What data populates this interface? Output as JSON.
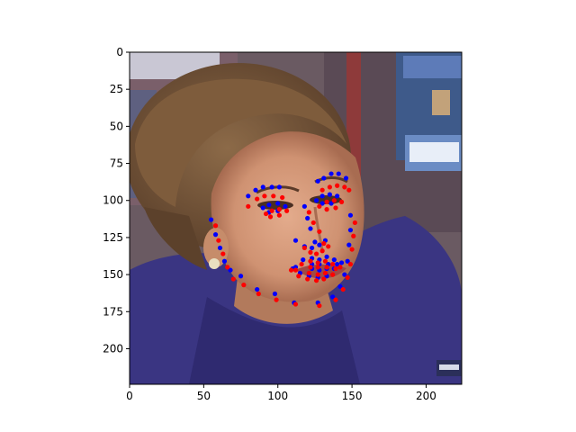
{
  "chart_data": {
    "type": "scatter",
    "title": "",
    "xlabel": "",
    "ylabel": "",
    "xlim": [
      0,
      224
    ],
    "ylim": [
      224,
      0
    ],
    "y_inverted": true,
    "grid": false,
    "background": "photograph of a woman's face (purple top, short brown hair), image shown with imshow",
    "x_ticks": [
      0,
      50,
      100,
      150,
      200
    ],
    "y_ticks": [
      0,
      25,
      50,
      75,
      100,
      125,
      150,
      175,
      200
    ],
    "series": [
      {
        "color": "#0000ff",
        "points": [
          [
            55,
            113
          ],
          [
            58,
            123
          ],
          [
            61,
            132
          ],
          [
            64,
            141
          ],
          [
            68,
            147
          ],
          [
            75,
            151
          ],
          [
            86,
            160
          ],
          [
            98,
            163
          ],
          [
            111,
            169
          ],
          [
            127,
            169
          ],
          [
            137,
            165
          ],
          [
            142,
            158
          ],
          [
            145,
            150
          ],
          [
            147,
            141
          ],
          [
            148,
            130
          ],
          [
            149,
            120
          ],
          [
            149,
            110
          ],
          [
            80,
            97
          ],
          [
            85,
            93
          ],
          [
            90,
            91
          ],
          [
            96,
            91
          ],
          [
            101,
            91
          ],
          [
            127,
            87
          ],
          [
            131,
            85
          ],
          [
            136,
            82
          ],
          [
            141,
            82
          ],
          [
            146,
            85
          ],
          [
            118,
            104
          ],
          [
            120,
            112
          ],
          [
            122,
            119
          ],
          [
            125,
            128
          ],
          [
            112,
            127
          ],
          [
            118,
            131
          ],
          [
            123,
            132
          ],
          [
            128,
            130
          ],
          [
            132,
            127
          ],
          [
            90,
            105
          ],
          [
            94,
            103
          ],
          [
            100,
            102
          ],
          [
            105,
            104
          ],
          [
            100,
            107
          ],
          [
            94,
            108
          ],
          [
            126,
            100
          ],
          [
            130,
            97
          ],
          [
            135,
            96
          ],
          [
            140,
            97
          ],
          [
            136,
            102
          ],
          [
            130,
            102
          ],
          [
            110,
            146
          ],
          [
            117,
            140
          ],
          [
            123,
            139
          ],
          [
            128,
            140
          ],
          [
            133,
            138
          ],
          [
            138,
            140
          ],
          [
            143,
            142
          ],
          [
            138,
            146
          ],
          [
            133,
            151
          ],
          [
            127,
            152
          ],
          [
            121,
            151
          ],
          [
            115,
            149
          ],
          [
            112,
            145
          ],
          [
            123,
            143
          ],
          [
            128,
            143
          ],
          [
            134,
            143
          ],
          [
            140,
            143
          ],
          [
            133,
            146
          ],
          [
            128,
            147
          ],
          [
            123,
            146
          ]
        ]
      },
      {
        "color": "#ff0000",
        "points": [
          [
            58,
            117
          ],
          [
            60,
            127
          ],
          [
            63,
            136
          ],
          [
            66,
            145
          ],
          [
            70,
            153
          ],
          [
            77,
            157
          ],
          [
            87,
            163
          ],
          [
            99,
            167
          ],
          [
            112,
            170
          ],
          [
            128,
            171
          ],
          [
            139,
            167
          ],
          [
            144,
            160
          ],
          [
            147,
            152
          ],
          [
            149,
            143
          ],
          [
            150,
            133
          ],
          [
            151,
            124
          ],
          [
            152,
            115
          ],
          [
            80,
            104
          ],
          [
            86,
            99
          ],
          [
            91,
            97
          ],
          [
            97,
            97
          ],
          [
            103,
            98
          ],
          [
            130,
            93
          ],
          [
            135,
            91
          ],
          [
            140,
            90
          ],
          [
            145,
            91
          ],
          [
            148,
            93
          ],
          [
            121,
            108
          ],
          [
            124,
            115
          ],
          [
            128,
            121
          ],
          [
            131,
            129
          ],
          [
            118,
            132
          ],
          [
            122,
            135
          ],
          [
            126,
            136
          ],
          [
            130,
            134
          ],
          [
            134,
            131
          ],
          [
            92,
            109
          ],
          [
            96,
            107
          ],
          [
            101,
            106
          ],
          [
            106,
            107
          ],
          [
            101,
            110
          ],
          [
            95,
            111
          ],
          [
            128,
            104
          ],
          [
            133,
            101
          ],
          [
            138,
            100
          ],
          [
            143,
            101
          ],
          [
            139,
            105
          ],
          [
            133,
            106
          ],
          [
            109,
            147
          ],
          [
            116,
            143
          ],
          [
            122,
            141
          ],
          [
            127,
            142
          ],
          [
            132,
            141
          ],
          [
            137,
            143
          ],
          [
            142,
            145
          ],
          [
            137,
            150
          ],
          [
            131,
            153
          ],
          [
            126,
            154
          ],
          [
            120,
            153
          ],
          [
            114,
            151
          ],
          [
            112,
            147
          ],
          [
            122,
            145
          ],
          [
            127,
            145
          ],
          [
            133,
            145
          ],
          [
            139,
            146
          ],
          [
            132,
            149
          ],
          [
            127,
            150
          ],
          [
            121,
            149
          ]
        ]
      }
    ]
  }
}
